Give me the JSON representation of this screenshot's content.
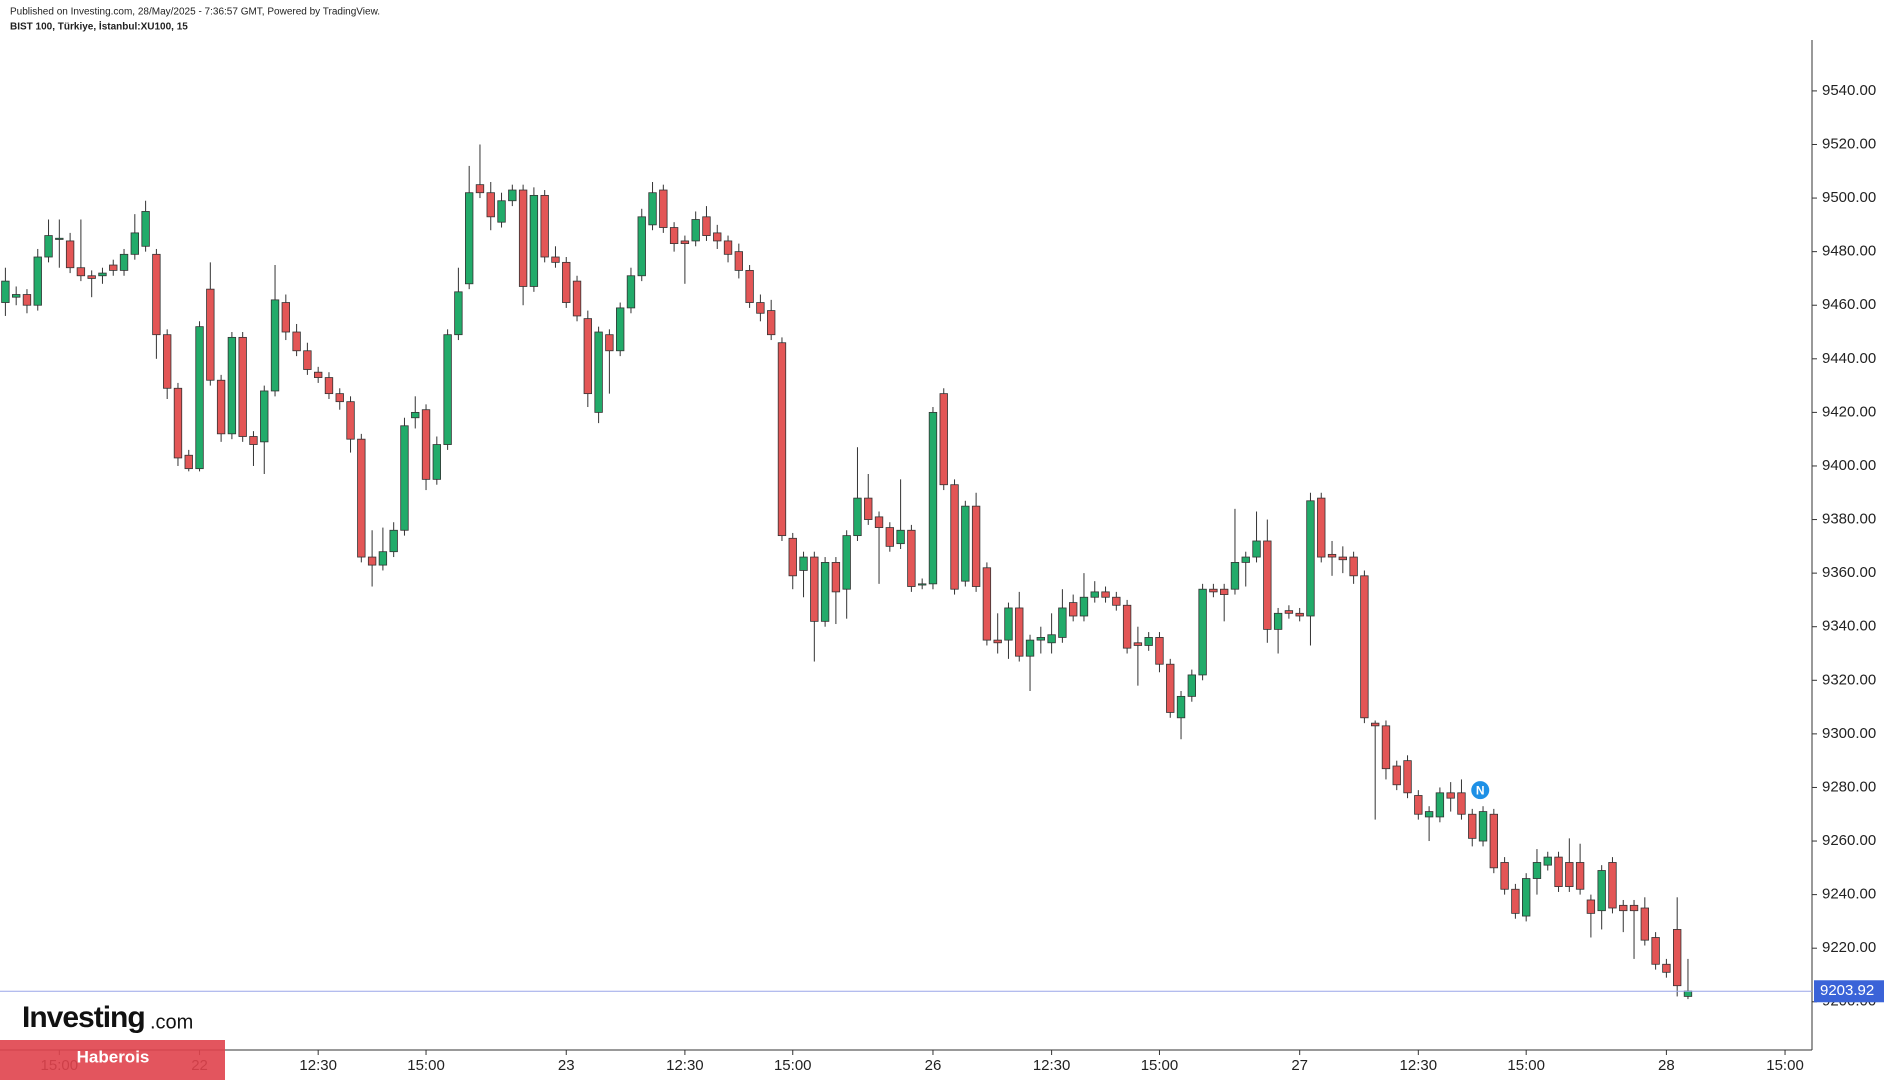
{
  "chart_data": {
    "type": "candlestick",
    "publisher": "Published on Investing.com, 28/May/2025 - 7:36:57 GMT, Powered by TradingView.",
    "title": "BIST 100, Türkiye, İstanbul:XU100, 15",
    "logo": "Investing",
    "logo_suffix": ".com",
    "watermark": "Haberois",
    "event_label": "N",
    "up_color": "#22ab6a",
    "down_color": "#e35656",
    "open": [
      9461,
      9463,
      9464,
      9460,
      9478,
      9485,
      9484,
      9474,
      9471,
      9471,
      9475,
      9473,
      9479,
      9482,
      9479,
      9449,
      9429,
      9404,
      9399,
      9466,
      9432,
      9412,
      9448,
      9411,
      9409,
      9428,
      9461,
      9450,
      9443,
      9435,
      9433,
      9427,
      9424,
      9410,
      9366,
      9363,
      9368,
      9376,
      9418,
      9421,
      9395,
      9408,
      9449,
      9468,
      9505,
      9502,
      9491,
      9499,
      9503,
      9467,
      9501,
      9478,
      9476,
      9469,
      9455,
      9420,
      9449,
      9443,
      9459,
      9471,
      9490,
      9503,
      9489,
      9484,
      9484,
      9493,
      9487,
      9484,
      9480,
      9473,
      9461,
      9458,
      9446,
      9373,
      9361,
      9366,
      9342,
      9364,
      9354,
      9374,
      9388,
      9381,
      9377,
      9371,
      9376,
      9356,
      9356,
      9427,
      9393,
      9357,
      9385,
      9362,
      9335,
      9335,
      9347,
      9329,
      9335,
      9334,
      9336,
      9349,
      9344,
      9351,
      9353,
      9351,
      9348,
      9334,
      9333,
      9336,
      9326,
      9306,
      9314,
      9322,
      9354,
      9354,
      9354,
      9364,
      9366,
      9372,
      9339,
      9346,
      9345,
      9344,
      9388,
      9367,
      9366,
      9366,
      9359,
      9304,
      9303,
      9288,
      9290,
      9277,
      9269,
      9269,
      9278,
      9278,
      9270,
      9260,
      9270,
      9252,
      9242,
      9232,
      9246,
      9251,
      9254,
      9252,
      9252,
      9238,
      9234,
      9252,
      9236,
      9236,
      9235,
      9224,
      9214,
      9227,
      9202
    ],
    "high": [
      9474,
      9467,
      9466,
      9481,
      9492,
      9492,
      9487,
      9492,
      9473,
      9474,
      9477,
      9481,
      9494,
      9499,
      9481,
      9451,
      9431,
      9406,
      9454,
      9476,
      9434,
      9450,
      9450,
      9413,
      9430,
      9475,
      9464,
      9453,
      9446,
      9437,
      9435,
      9429,
      9426,
      9412,
      9376,
      9377,
      9379,
      9418,
      9426,
      9423,
      9411,
      9451,
      9474,
      9512,
      9520,
      9506,
      9502,
      9505,
      9505,
      9504,
      9503,
      9482,
      9478,
      9471,
      9458,
      9452,
      9451,
      9461,
      9474,
      9496,
      9506,
      9505,
      9491,
      9486,
      9495,
      9497,
      9490,
      9486,
      9483,
      9475,
      9464,
      9462,
      9448,
      9375,
      9368,
      9368,
      9366,
      9366,
      9376,
      9407,
      9397,
      9383,
      9379,
      9395,
      9378,
      9358,
      9422,
      9429,
      9395,
      9387,
      9390,
      9364,
      9345,
      9349,
      9353,
      9337,
      9340,
      9345,
      9354,
      9352,
      9360,
      9357,
      9355,
      9353,
      9350,
      9340,
      9338,
      9338,
      9328,
      9316,
      9324,
      9356,
      9356,
      9356,
      9384,
      9368,
      9383,
      9380,
      9347,
      9348,
      9347,
      9390,
      9390,
      9372,
      9370,
      9368,
      9361,
      9305,
      9305,
      9290,
      9292,
      9279,
      9273,
      9280,
      9282,
      9283,
      9272,
      9273,
      9272,
      9254,
      9244,
      9248,
      9257,
      9256,
      9256,
      9261,
      9259,
      9240,
      9251,
      9254,
      9238,
      9238,
      9239,
      9226,
      9216,
      9239,
      9216
    ],
    "low": [
      9456,
      9460,
      9457,
      9458,
      9476,
      9474,
      9472,
      9469,
      9463,
      9468,
      9471,
      9471,
      9477,
      9480,
      9440,
      9425,
      9400,
      9398,
      9398,
      9430,
      9409,
      9410,
      9409,
      9400,
      9397,
      9426,
      9447,
      9441,
      9434,
      9431,
      9425,
      9421,
      9405,
      9364,
      9355,
      9361,
      9366,
      9374,
      9414,
      9391,
      9393,
      9406,
      9447,
      9466,
      9500,
      9488,
      9489,
      9497,
      9460,
      9465,
      9476,
      9474,
      9459,
      9454,
      9422,
      9416,
      9427,
      9441,
      9457,
      9469,
      9488,
      9487,
      9480,
      9468,
      9482,
      9484,
      9481,
      9476,
      9470,
      9459,
      9454,
      9447,
      9372,
      9354,
      9351,
      9327,
      9340,
      9341,
      9343,
      9372,
      9378,
      9356,
      9368,
      9369,
      9353,
      9354,
      9354,
      9391,
      9352,
      9355,
      9353,
      9333,
      9330,
      9328,
      9327,
      9316,
      9330,
      9330,
      9334,
      9342,
      9342,
      9349,
      9349,
      9346,
      9330,
      9318,
      9331,
      9323,
      9306,
      9298,
      9312,
      9320,
      9351,
      9342,
      9352,
      9355,
      9364,
      9334,
      9330,
      9343,
      9342,
      9333,
      9364,
      9359,
      9360,
      9356,
      9304,
      9268,
      9283,
      9279,
      9276,
      9268,
      9260,
      9267,
      9271,
      9268,
      9258,
      9258,
      9248,
      9240,
      9231,
      9230,
      9240,
      9249,
      9241,
      9241,
      9240,
      9224,
      9227,
      9233,
      9226,
      9216,
      9221,
      9212,
      9209,
      9202,
      9201
    ],
    "close": [
      9469,
      9464,
      9460,
      9478,
      9486,
      9485,
      9474,
      9471,
      9470,
      9472,
      9473,
      9479,
      9487,
      9495,
      9449,
      9429,
      9403,
      9399,
      9452,
      9432,
      9412,
      9448,
      9411,
      9408,
      9428,
      9462,
      9450,
      9443,
      9436,
      9433,
      9427,
      9424,
      9410,
      9366,
      9363,
      9368,
      9376,
      9415,
      9420,
      9395,
      9408,
      9449,
      9465,
      9502,
      9502,
      9493,
      9499,
      9503,
      9467,
      9501,
      9478,
      9476,
      9461,
      9456,
      9427,
      9450,
      9443,
      9459,
      9471,
      9493,
      9502,
      9489,
      9483,
      9483,
      9492,
      9486,
      9484,
      9479,
      9473,
      9461,
      9457,
      9449,
      9374,
      9359,
      9366,
      9342,
      9364,
      9353,
      9374,
      9388,
      9380,
      9377,
      9370,
      9376,
      9355,
      9356,
      9420,
      9393,
      9354,
      9385,
      9355,
      9335,
      9334,
      9347,
      9329,
      9335,
      9336,
      9337,
      9347,
      9344,
      9351,
      9353,
      9351,
      9348,
      9332,
      9333,
      9336,
      9326,
      9308,
      9314,
      9322,
      9354,
      9353,
      9352,
      9364,
      9366,
      9372,
      9339,
      9345,
      9345,
      9344,
      9387,
      9366,
      9366,
      9365,
      9359,
      9306,
      9303,
      9287,
      9281,
      9278,
      9270,
      9271,
      9278,
      9276,
      9270,
      9261,
      9271,
      9250,
      9242,
      9233,
      9246,
      9252,
      9254,
      9243,
      9243,
      9242,
      9233,
      9249,
      9235,
      9234,
      9234,
      9223,
      9214,
      9211,
      9206,
      9204
    ],
    "last_price": 9203.92,
    "xlim": [
      -0.5,
      167.5
    ],
    "xticks": [
      {
        "value": 5,
        "label": "15:00"
      },
      {
        "value": 18,
        "label": "22"
      },
      {
        "value": 29,
        "label": "12:30"
      },
      {
        "value": 39,
        "label": "15:00"
      },
      {
        "value": 52,
        "label": "23"
      },
      {
        "value": 63,
        "label": "12:30"
      },
      {
        "value": 73,
        "label": "15:00"
      },
      {
        "value": 86,
        "label": "26"
      },
      {
        "value": 97,
        "label": "12:30"
      },
      {
        "value": 107,
        "label": "15:00"
      },
      {
        "value": 120,
        "label": "27"
      },
      {
        "value": 131,
        "label": "12:30"
      },
      {
        "value": 141,
        "label": "15:00"
      },
      {
        "value": 154,
        "label": "28"
      },
      {
        "value": 165,
        "label": "15:00"
      }
    ],
    "ylim": [
      9182,
      9559
    ],
    "yticks": [
      {
        "value": 9200,
        "label": "9200.00"
      },
      {
        "value": 9220,
        "label": "9220.00"
      },
      {
        "value": 9240,
        "label": "9240.00"
      },
      {
        "value": 9260,
        "label": "9260.00"
      },
      {
        "value": 9280,
        "label": "9280.00"
      },
      {
        "value": 9300,
        "label": "9300.00"
      },
      {
        "value": 9320,
        "label": "9320.00"
      },
      {
        "value": 9340,
        "label": "9340.00"
      },
      {
        "value": 9360,
        "label": "9360.00"
      },
      {
        "value": 9380,
        "label": "9380.00"
      },
      {
        "value": 9400,
        "label": "9400.00"
      },
      {
        "value": 9420,
        "label": "9420.00"
      },
      {
        "value": 9440,
        "label": "9440.00"
      },
      {
        "value": 9460,
        "label": "9460.00"
      },
      {
        "value": 9480,
        "label": "9480.00"
      },
      {
        "value": 9500,
        "label": "9500.00"
      },
      {
        "value": 9520,
        "label": "9520.00"
      },
      {
        "value": 9540,
        "label": "9540.00"
      }
    ]
  }
}
